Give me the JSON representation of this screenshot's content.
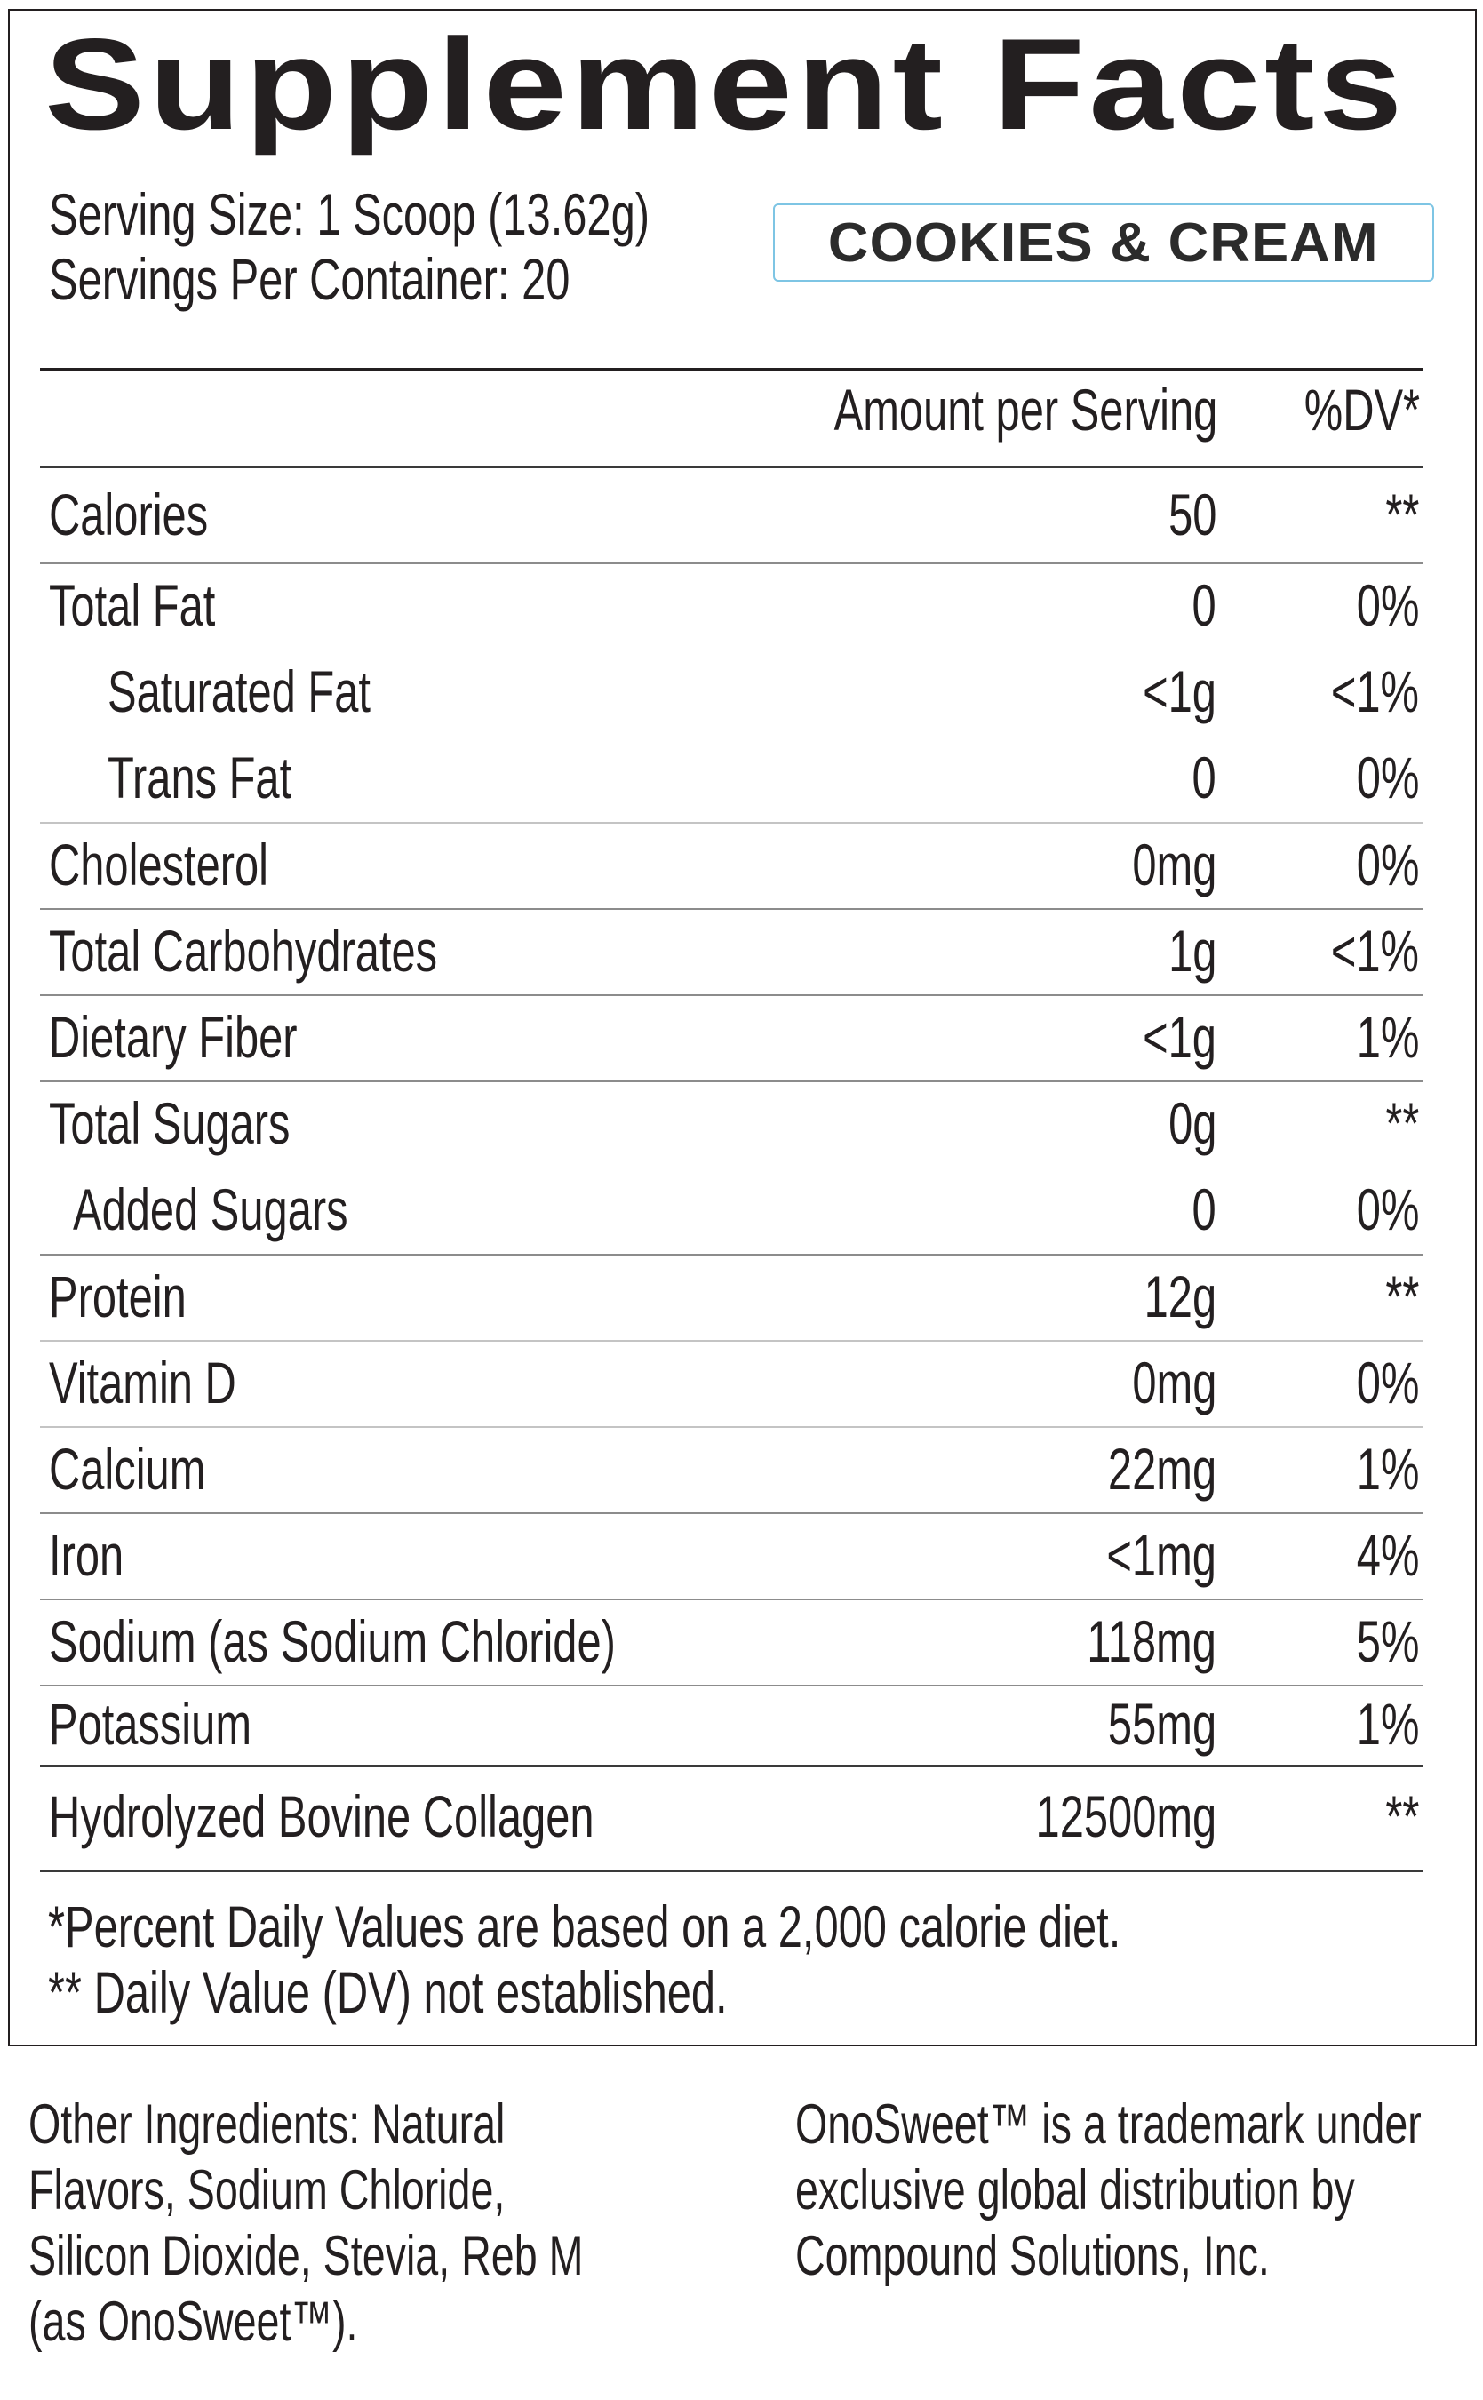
{
  "panel": {
    "title": "Supplement Facts",
    "serving_size": "Serving Size: 1 Scoop (13.62g)",
    "servings_per_container": "Servings Per Container: 20",
    "flavor": "COOKIES & CREAM",
    "columns": {
      "amount": "Amount per Serving",
      "dv": "%DV*"
    },
    "rows": [
      {
        "name": "Calories",
        "amount": "50",
        "dv": "**",
        "indent": 0
      },
      {
        "name": "Total Fat",
        "amount": "0",
        "dv": "0%",
        "indent": 0
      },
      {
        "name": "Saturated Fat",
        "amount": "<1g",
        "dv": "<1%",
        "indent": 2
      },
      {
        "name": "Trans Fat",
        "amount": "0",
        "dv": "0%",
        "indent": 2
      },
      {
        "name": "Cholesterol",
        "amount": "0mg",
        "dv": "0%",
        "indent": 0
      },
      {
        "name": "Total Carbohydrates",
        "amount": "1g",
        "dv": "<1%",
        "indent": 0
      },
      {
        "name": "Dietary Fiber",
        "amount": "<1g",
        "dv": "1%",
        "indent": 0
      },
      {
        "name": "Total Sugars",
        "amount": "0g",
        "dv": "**",
        "indent": 0
      },
      {
        "name": "Added Sugars",
        "amount": "0",
        "dv": "0%",
        "indent": 1
      },
      {
        "name": "Protein",
        "amount": "12g",
        "dv": "**",
        "indent": 0
      },
      {
        "name": "Vitamin D",
        "amount": "0mg",
        "dv": "0%",
        "indent": 0
      },
      {
        "name": "Calcium",
        "amount": "22mg",
        "dv": "1%",
        "indent": 0
      },
      {
        "name": "Iron",
        "amount": "<1mg",
        "dv": "4%",
        "indent": 0
      },
      {
        "name": "Sodium (as Sodium Chloride)",
        "amount": "118mg",
        "dv": "5%",
        "indent": 0
      },
      {
        "name": "Potassium",
        "amount": "55mg",
        "dv": "1%",
        "indent": 0
      },
      {
        "name": "Hydrolyzed Bovine Collagen",
        "amount": "12500mg",
        "dv": "**",
        "indent": 0
      }
    ],
    "footnotes": [
      "*Percent Daily Values are based on a 2,000 calorie diet.",
      "** Daily Value (DV) not established."
    ]
  },
  "other_ingredients": {
    "lines": [
      "Other Ingredients: Natural",
      "Flavors, Sodium Chloride,",
      "Silicon Dioxide, Stevia, Reb M",
      "(as OnoSweet™)."
    ]
  },
  "trademark_note": {
    "lines": [
      "OnoSweet™ is a trademark under",
      "exclusive global distribution by",
      "Compound Solutions, Inc."
    ]
  },
  "colors": {
    "text": "#231f20",
    "badge_border": "#7ec5e4",
    "rule_dark": "#231f20",
    "rule_light": "#8c8c8c"
  }
}
